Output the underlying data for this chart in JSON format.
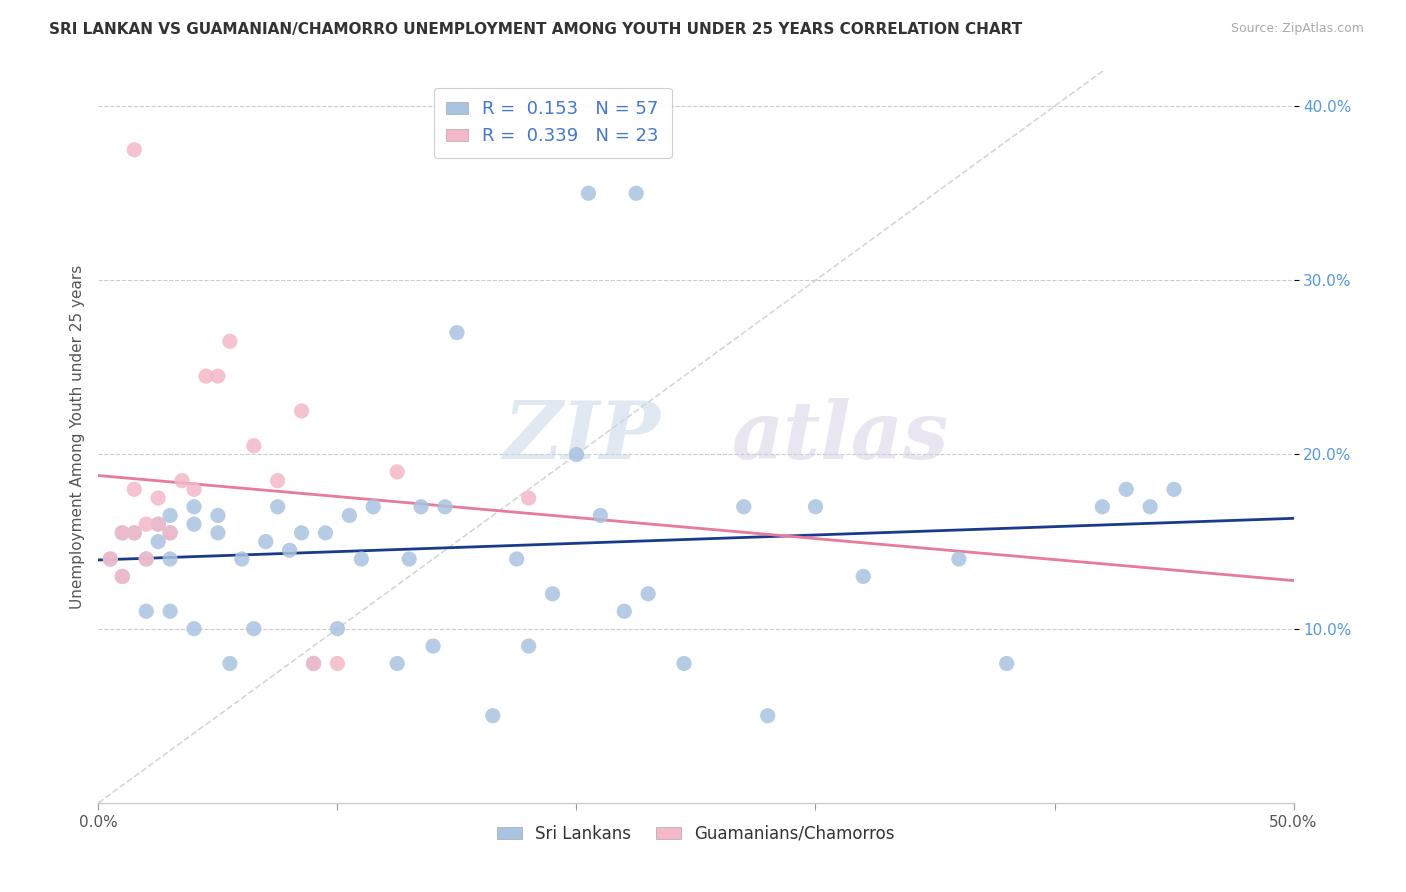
{
  "title": "SRI LANKAN VS GUAMANIAN/CHAMORRO UNEMPLOYMENT AMONG YOUTH UNDER 25 YEARS CORRELATION CHART",
  "source": "Source: ZipAtlas.com",
  "ylabel": "Unemployment Among Youth under 25 years",
  "xlim": [
    0.0,
    0.5
  ],
  "ylim": [
    0.0,
    0.42
  ],
  "xticks": [
    0.0,
    0.1,
    0.2,
    0.3,
    0.4,
    0.5
  ],
  "yticks": [
    0.1,
    0.2,
    0.3,
    0.4
  ],
  "sri_lankan_color": "#a8c4e0",
  "guam_color": "#f4b8c8",
  "trend_sri_color": "#1a3a8c",
  "trend_guam_color": "#e87a9a",
  "watermark_zip": "ZIP",
  "watermark_atlas": "atlas",
  "sri_lankans_label": "Sri Lankans",
  "guamanians_label": "Guamanians/Chamorros",
  "sri_lankans_x": [
    0.005,
    0.01,
    0.01,
    0.015,
    0.02,
    0.02,
    0.025,
    0.025,
    0.03,
    0.03,
    0.03,
    0.03,
    0.04,
    0.04,
    0.04,
    0.05,
    0.05,
    0.055,
    0.06,
    0.065,
    0.07,
    0.075,
    0.08,
    0.085,
    0.09,
    0.095,
    0.1,
    0.105,
    0.11,
    0.115,
    0.125,
    0.13,
    0.135,
    0.14,
    0.145,
    0.15,
    0.165,
    0.175,
    0.18,
    0.19,
    0.2,
    0.205,
    0.21,
    0.22,
    0.225,
    0.23,
    0.245,
    0.27,
    0.28,
    0.3,
    0.32,
    0.36,
    0.38,
    0.42,
    0.43,
    0.44,
    0.45
  ],
  "sri_lankans_y": [
    0.14,
    0.13,
    0.155,
    0.155,
    0.11,
    0.14,
    0.15,
    0.16,
    0.11,
    0.14,
    0.155,
    0.165,
    0.1,
    0.16,
    0.17,
    0.155,
    0.165,
    0.08,
    0.14,
    0.1,
    0.15,
    0.17,
    0.145,
    0.155,
    0.08,
    0.155,
    0.1,
    0.165,
    0.14,
    0.17,
    0.08,
    0.14,
    0.17,
    0.09,
    0.17,
    0.27,
    0.05,
    0.14,
    0.09,
    0.12,
    0.2,
    0.35,
    0.165,
    0.11,
    0.35,
    0.12,
    0.08,
    0.17,
    0.05,
    0.17,
    0.13,
    0.14,
    0.08,
    0.17,
    0.18,
    0.17,
    0.18
  ],
  "guamanians_x": [
    0.005,
    0.01,
    0.01,
    0.015,
    0.015,
    0.015,
    0.02,
    0.02,
    0.025,
    0.025,
    0.03,
    0.035,
    0.04,
    0.045,
    0.05,
    0.055,
    0.065,
    0.075,
    0.085,
    0.09,
    0.1,
    0.125,
    0.18
  ],
  "guamanians_y": [
    0.14,
    0.13,
    0.155,
    0.155,
    0.18,
    0.375,
    0.14,
    0.16,
    0.16,
    0.175,
    0.155,
    0.185,
    0.18,
    0.245,
    0.245,
    0.265,
    0.205,
    0.185,
    0.225,
    0.08,
    0.08,
    0.19,
    0.175
  ]
}
